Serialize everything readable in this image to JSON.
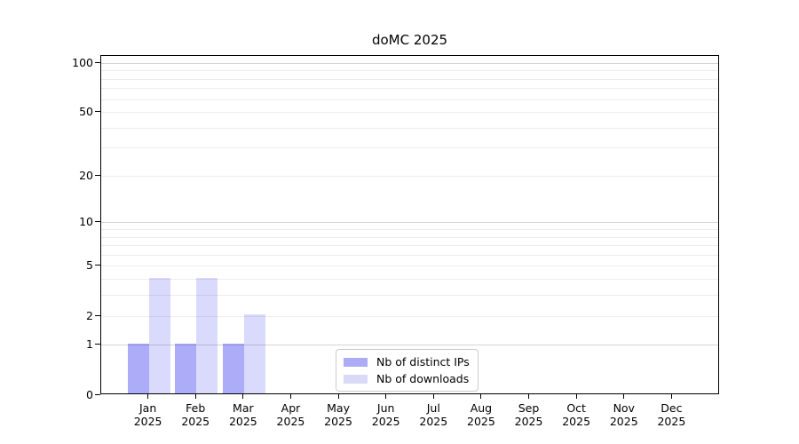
{
  "chart_data": {
    "type": "bar",
    "title": "doMC 2025",
    "x": {
      "categories": [
        "Jan",
        "Feb",
        "Mar",
        "Apr",
        "May",
        "Jun",
        "Jul",
        "Aug",
        "Sep",
        "Oct",
        "Nov",
        "Dec"
      ],
      "year_label": "2025"
    },
    "series": [
      {
        "name": "Nb of distinct IPs",
        "color": "#acacf4",
        "color_rgba": "rgba(16,16,234,0.35)",
        "values": [
          1,
          1,
          1,
          0,
          0,
          0,
          0,
          0,
          0,
          0,
          0,
          0
        ]
      },
      {
        "name": "Nb of downloads",
        "color": "#dadaf8",
        "color_rgba": "rgba(16,16,234,0.155)",
        "values": [
          4,
          4,
          2,
          0,
          0,
          0,
          0,
          0,
          0,
          0,
          0,
          0
        ]
      }
    ],
    "y_axis": {
      "scale": "log1p",
      "tick_values": [
        0,
        1,
        2,
        5,
        10,
        20,
        50,
        100
      ],
      "tick_labels": [
        "0",
        "1",
        "2",
        "5",
        "10",
        "20",
        "50",
        "100"
      ],
      "minor_gridlines": [
        2,
        3,
        4,
        5,
        6,
        7,
        8,
        9,
        20,
        30,
        40,
        50,
        60,
        70,
        80,
        90
      ],
      "major_gridlines": [
        1,
        10,
        100
      ],
      "ylim": [
        0,
        111
      ]
    },
    "legend": {
      "position": "inside-bottom-center",
      "entries": [
        "Nb of distinct IPs",
        "Nb of downloads"
      ]
    },
    "grid": true,
    "colors": {
      "axis": "#000000",
      "grid_minor": "#ececec",
      "grid_major": "#d4d4d4",
      "legend_border": "#cccccc",
      "text": "#000000",
      "background": "#ffffff"
    }
  }
}
